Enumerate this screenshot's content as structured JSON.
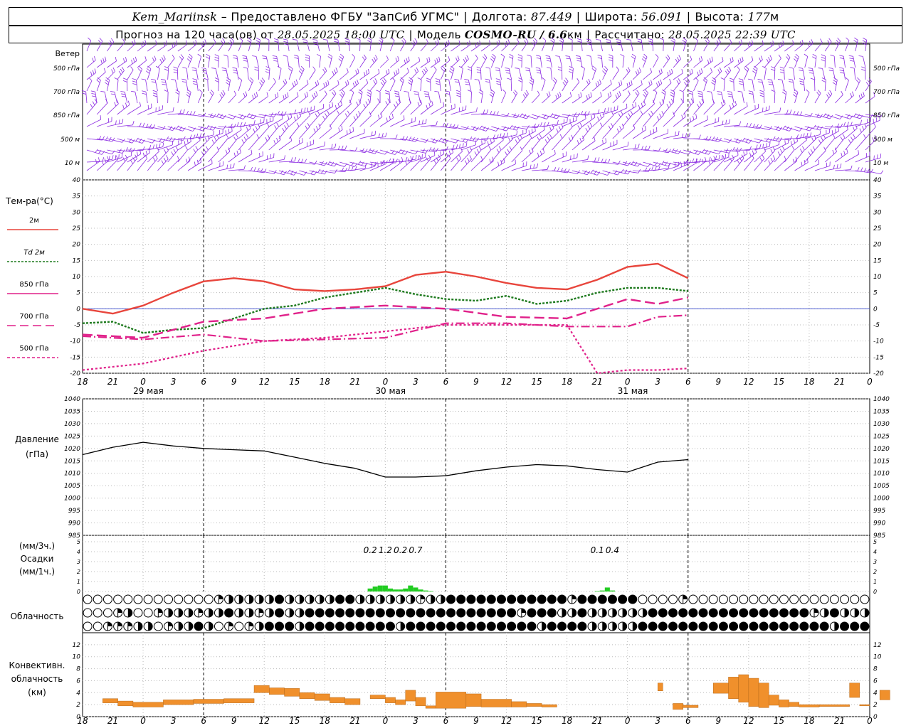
{
  "header": {
    "station": "Kem_Mariinsk",
    "dash": "–",
    "provider": "Предоставлено ФГБУ \"ЗапСиб УГМС\"",
    "lon_label": "Долгота:",
    "lon": "87.449",
    "lat_label": "Широта:",
    "lat": "56.091",
    "alt_label": "Высота:",
    "alt": "177",
    "alt_unit": "м",
    "forecast_prefix": "Прогноз на 120 часа(ов) от",
    "forecast_from": "28.05.2025 18:00 UTC",
    "model_label": "Модель",
    "model": "COSMO-RU / 6.6",
    "model_unit": "км",
    "computed_label": "Рассчитано:",
    "computed": "28.05.2025 22:39 UTC"
  },
  "wind_panel": {
    "label": "Ветер",
    "levels": [
      "500 гПа",
      "700 гПа",
      "850 гПа",
      "500 м",
      "10  м"
    ],
    "color": "#8b2be2"
  },
  "x_axis": {
    "hour_labels": [
      "18",
      "21",
      "0",
      "3",
      "6",
      "9",
      "12",
      "15",
      "18",
      "21",
      "0",
      "3",
      "6",
      "9",
      "12",
      "15",
      "18",
      "21",
      "0",
      "3",
      "6",
      "9",
      "12",
      "15",
      "18",
      "21",
      "0"
    ],
    "day_labels": [
      {
        "label": "29 мая",
        "index": 2
      },
      {
        "label": "30 мая",
        "index": 10
      },
      {
        "label": "31 мая",
        "index": 18
      }
    ]
  },
  "temperature_panel": {
    "title": "Тем-ра(°С)",
    "legend": [
      {
        "label": "2м",
        "color": "#e8453c",
        "dash": ""
      },
      {
        "label": "Td  2м",
        "color": "#1e7a1e",
        "dash": "3,2"
      },
      {
        "label": "850 гПа",
        "color": "#e0218a",
        "dash": ""
      },
      {
        "label": "700 гПа",
        "color": "#e0218a",
        "dash": "12,6"
      },
      {
        "label": "500 гПа",
        "color": "#e0218a",
        "dash": "4,3"
      }
    ],
    "ticks": [
      "40",
      "35",
      "30",
      "25",
      "20",
      "15",
      "10",
      "5",
      "0",
      "-5",
      "-10",
      "-15",
      "-20"
    ]
  },
  "pressure_panel": {
    "title": "Давление",
    "unit": "(гПа)",
    "ticks": [
      "1040",
      "1035",
      "1030",
      "1025",
      "1020",
      "1015",
      "1010",
      "1005",
      "1000",
      "995",
      "990",
      "985"
    ]
  },
  "precip_panel": {
    "unit_3h": "(мм/3ч.)",
    "title": "Осадки",
    "unit_1h": "(мм/1ч.)",
    "ticks": [
      "5",
      "4",
      "3",
      "2",
      "1",
      "0"
    ],
    "annotations": [
      "0.2",
      "1.2",
      "0.2",
      "0.7",
      "0.1",
      "0.4"
    ],
    "color": "#22cc22"
  },
  "cloud_panel": {
    "title": "Облачность"
  },
  "convective_panel": {
    "title_line1": "Конвективн.",
    "title_line2": "облачность",
    "unit": "(км)",
    "ticks": [
      "12",
      "10",
      "8",
      "6",
      "4",
      "2",
      "0"
    ],
    "color": "#f0902c"
  },
  "chart_data": [
    {
      "type": "line",
      "title": "Тем-ра(°С)",
      "x_unit": "hours since 28.05.2025 18:00 UTC",
      "ylim": [
        -20,
        40
      ],
      "series": [
        {
          "name": "2м",
          "x": [
            0,
            6,
            12,
            18,
            24,
            30,
            36,
            42,
            48,
            54,
            60,
            66,
            72,
            78,
            84,
            90,
            96,
            102,
            108,
            114,
            120
          ],
          "values": [
            0,
            -1.5,
            1,
            5,
            8.5,
            9.5,
            8.5,
            6,
            5.5,
            6,
            7,
            10.5,
            11.5,
            10,
            8,
            6.5,
            6,
            9,
            13,
            14,
            9.5
          ]
        },
        {
          "name": "Td  2м",
          "x": [
            0,
            6,
            12,
            18,
            24,
            30,
            36,
            42,
            48,
            54,
            60,
            66,
            72,
            78,
            84,
            90,
            96,
            102,
            108,
            114,
            120
          ],
          "values": [
            -4.5,
            -4,
            -7.5,
            -6.5,
            -6,
            -3,
            0,
            1,
            3.5,
            5,
            6.5,
            4.5,
            3,
            2.5,
            4,
            1.5,
            2.5,
            5,
            6.5,
            6.5,
            5.5
          ]
        },
        {
          "name": "850 гПа",
          "x": [
            0,
            12,
            24,
            36,
            48,
            60,
            72,
            84,
            96,
            108,
            114,
            120
          ],
          "values": [
            -8,
            -9,
            -4,
            -3,
            0,
            1,
            0,
            -2.5,
            -3,
            3,
            1.5,
            3.5
          ]
        },
        {
          "name": "700 гПа",
          "x": [
            0,
            12,
            24,
            36,
            48,
            60,
            72,
            84,
            96,
            108,
            114,
            120
          ],
          "values": [
            -8.5,
            -9.5,
            -8,
            -10,
            -9.5,
            -9,
            -4.5,
            -4.5,
            -5.5,
            -5.5,
            -2.5,
            -2
          ]
        },
        {
          "name": "500 гПа",
          "x": [
            0,
            12,
            24,
            36,
            48,
            60,
            72,
            84,
            96,
            102,
            108,
            114,
            120
          ],
          "values": [
            -19,
            -17,
            -13,
            -10,
            -9,
            -7,
            -5,
            -5,
            -5,
            -20,
            -19,
            -19,
            -18.5
          ]
        }
      ]
    },
    {
      "type": "line",
      "title": "Давление",
      "ylabel": "(гПа)",
      "ylim": [
        985,
        1040
      ],
      "x": [
        0,
        6,
        12,
        18,
        24,
        30,
        36,
        42,
        48,
        54,
        60,
        66,
        72,
        78,
        84,
        90,
        96,
        102,
        108,
        114,
        120
      ],
      "values": [
        1017.5,
        1020.5,
        1022.5,
        1021,
        1020,
        1019.5,
        1019,
        1016.5,
        1014,
        1012,
        1008.5,
        1008.5,
        1009,
        1011,
        1012.5,
        1013.5,
        1013,
        1011.5,
        1010.5,
        1014.5,
        1015.5
      ]
    },
    {
      "type": "bar",
      "title": "Осадки",
      "ylabel": "(мм/1ч.)",
      "ylim": [
        0,
        5
      ],
      "x": [
        57,
        58,
        59,
        60,
        61,
        62,
        63,
        64,
        65,
        66,
        67,
        68,
        69,
        102,
        103,
        104,
        105
      ],
      "values": [
        0.3,
        0.5,
        0.6,
        0.6,
        0.3,
        0.2,
        0.2,
        0.3,
        0.6,
        0.4,
        0.2,
        0.1,
        0.05,
        0.05,
        0.1,
        0.4,
        0.1
      ],
      "totals_3h": [
        {
          "x": 57,
          "value": 0.2
        },
        {
          "x": 60,
          "value": 1.2
        },
        {
          "x": 63,
          "value": 0.2
        },
        {
          "x": 66,
          "value": 0.7
        },
        {
          "x": 102,
          "value": 0.1
        },
        {
          "x": 105,
          "value": 0.4
        }
      ]
    },
    {
      "type": "bar",
      "title": "Конвективн. облачность",
      "ylabel": "(км)",
      "ylim": [
        0,
        12
      ],
      "segments": [
        {
          "x0": 4,
          "x1": 7,
          "bottom": 2.3,
          "top": 3.0
        },
        {
          "x0": 7,
          "x1": 10,
          "bottom": 1.8,
          "top": 2.6
        },
        {
          "x0": 10,
          "x1": 16,
          "bottom": 1.6,
          "top": 2.4
        },
        {
          "x0": 16,
          "x1": 22,
          "bottom": 2.0,
          "top": 2.8
        },
        {
          "x0": 22,
          "x1": 28,
          "bottom": 2.2,
          "top": 2.9
        },
        {
          "x0": 28,
          "x1": 34,
          "bottom": 2.3,
          "top": 3.0
        },
        {
          "x0": 34,
          "x1": 37,
          "bottom": 4.0,
          "top": 5.2
        },
        {
          "x0": 37,
          "x1": 40,
          "bottom": 3.7,
          "top": 4.8
        },
        {
          "x0": 40,
          "x1": 43,
          "bottom": 3.4,
          "top": 4.7
        },
        {
          "x0": 43,
          "x1": 46,
          "bottom": 3.0,
          "top": 4.0
        },
        {
          "x0": 46,
          "x1": 49,
          "bottom": 2.7,
          "top": 3.8
        },
        {
          "x0": 49,
          "x1": 52,
          "bottom": 2.3,
          "top": 3.2
        },
        {
          "x0": 52,
          "x1": 55,
          "bottom": 2.0,
          "top": 3.0
        },
        {
          "x0": 57,
          "x1": 60,
          "bottom": 3.0,
          "top": 3.6
        },
        {
          "x0": 60,
          "x1": 62,
          "bottom": 2.3,
          "top": 3.2
        },
        {
          "x0": 62,
          "x1": 64,
          "bottom": 2.0,
          "top": 2.8
        },
        {
          "x0": 64,
          "x1": 66,
          "bottom": 2.6,
          "top": 4.4
        },
        {
          "x0": 66,
          "x1": 68,
          "bottom": 1.8,
          "top": 3.2
        },
        {
          "x0": 68,
          "x1": 70,
          "bottom": 1.4,
          "top": 1.8
        },
        {
          "x0": 70,
          "x1": 76,
          "bottom": 1.4,
          "top": 4.1
        },
        {
          "x0": 76,
          "x1": 79,
          "bottom": 1.7,
          "top": 3.8
        },
        {
          "x0": 79,
          "x1": 85,
          "bottom": 1.6,
          "top": 2.9
        },
        {
          "x0": 85,
          "x1": 88,
          "bottom": 1.6,
          "top": 2.5
        },
        {
          "x0": 88,
          "x1": 91,
          "bottom": 1.7,
          "top": 2.2
        },
        {
          "x0": 91,
          "x1": 94,
          "bottom": 1.6,
          "top": 2.0
        },
        {
          "x0": 114,
          "x1": 115,
          "bottom": 4.3,
          "top": 5.6
        },
        {
          "x0": 117,
          "x1": 119,
          "bottom": 1.2,
          "top": 2.2
        },
        {
          "x0": 119,
          "x1": 122,
          "bottom": 1.5,
          "top": 1.9
        },
        {
          "x0": 125,
          "x1": 128,
          "bottom": 3.9,
          "top": 5.6
        },
        {
          "x0": 128,
          "x1": 130,
          "bottom": 3.0,
          "top": 6.6
        },
        {
          "x0": 130,
          "x1": 132,
          "bottom": 2.4,
          "top": 7.0
        },
        {
          "x0": 132,
          "x1": 134,
          "bottom": 1.7,
          "top": 6.4
        },
        {
          "x0": 134,
          "x1": 136,
          "bottom": 1.5,
          "top": 5.6
        },
        {
          "x0": 136,
          "x1": 138,
          "bottom": 1.9,
          "top": 3.6
        },
        {
          "x0": 138,
          "x1": 140,
          "bottom": 1.6,
          "top": 2.8
        },
        {
          "x0": 140,
          "x1": 142,
          "bottom": 1.7,
          "top": 2.4
        },
        {
          "x0": 142,
          "x1": 146,
          "bottom": 1.6,
          "top": 2.0
        },
        {
          "x0": 146,
          "x1": 152,
          "bottom": 1.7,
          "top": 2.0
        },
        {
          "x0": 152,
          "x1": 154,
          "bottom": 3.2,
          "top": 5.6
        },
        {
          "x0": 154,
          "x1": 156,
          "bottom": 1.8,
          "top": 2.0
        },
        {
          "x0": 158,
          "x1": 160,
          "bottom": 2.8,
          "top": 4.4
        }
      ]
    }
  ]
}
